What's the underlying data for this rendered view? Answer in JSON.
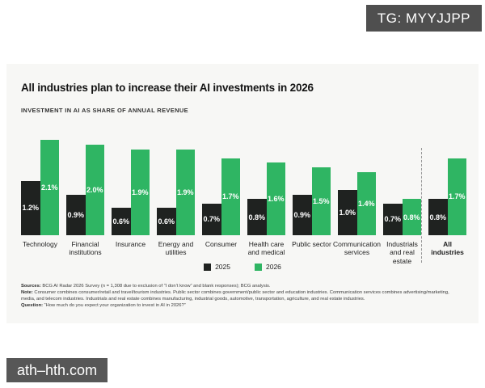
{
  "watermarks": {
    "top_right": "TG: MYYJJPP",
    "bottom_left": "ath–hth.com"
  },
  "header": {
    "title": "All industries plan to increase their AI investments in 2026",
    "subtitle": "INVESTMENT IN AI AS SHARE OF ANNUAL REVENUE"
  },
  "chart_data": {
    "type": "bar",
    "title": "All industries plan to increase their AI investments in 2026",
    "subtitle": "Investment in AI as share of annual revenue",
    "categories": [
      "Technology",
      "Financial institutions",
      "Insurance",
      "Energy and utilities",
      "Consumer",
      "Health care and medical",
      "Public sector",
      "Communication services",
      "Industrials and real estate",
      "All industries"
    ],
    "category_label_lines": [
      [
        "Technology"
      ],
      [
        "Financial",
        "institutions"
      ],
      [
        "Insurance"
      ],
      [
        "Energy and",
        "utilities"
      ],
      [
        "Consumer"
      ],
      [
        "Health care",
        "and medical"
      ],
      [
        "Public sector"
      ],
      [
        "Communication",
        "services"
      ],
      [
        "Industrials",
        "and real",
        "estate"
      ],
      [
        "All",
        "industries"
      ]
    ],
    "series": [
      {
        "name": "2025",
        "color": "#1f2220",
        "values": [
          1.2,
          0.9,
          0.6,
          0.6,
          0.7,
          0.8,
          0.9,
          1.0,
          0.7,
          0.8
        ]
      },
      {
        "name": "2026",
        "color": "#2fb563",
        "values": [
          2.1,
          2.0,
          1.9,
          1.9,
          1.7,
          1.6,
          1.5,
          1.4,
          0.8,
          1.7
        ]
      }
    ],
    "value_suffix": "%",
    "ylim": [
      0,
      2.3
    ],
    "grid": false,
    "legend_position": "bottom",
    "bar_labels": "inside-centered-white",
    "separator_before_index": 9,
    "bold_category_index": 9
  },
  "footnotes": [
    {
      "prefix": "Sources:",
      "text": " BCG AI Radar 2026 Survey (n = 1,308 due to exclusion of “I don’t know” and blank responses); BCG analysis."
    },
    {
      "prefix": "Note:",
      "text": " Consumer combines consumer/retail and travel/tourism industries. Public sector combines government/public sector and education industries. Communication services combines advertising/marketing, media, and telecom industries. Industrials and real estate combines manufacturing, industrial goods, automotive, transportation, agriculture, and real estate industries."
    },
    {
      "prefix": "Question:",
      "text": " “How much do you expect your organization to invest in AI in 2026?”"
    }
  ],
  "colors": {
    "accent_green": "#2fb563",
    "bar_black": "#1f2220",
    "card_background": "#f7f7f5",
    "watermark_background": "#4f4f4f"
  }
}
